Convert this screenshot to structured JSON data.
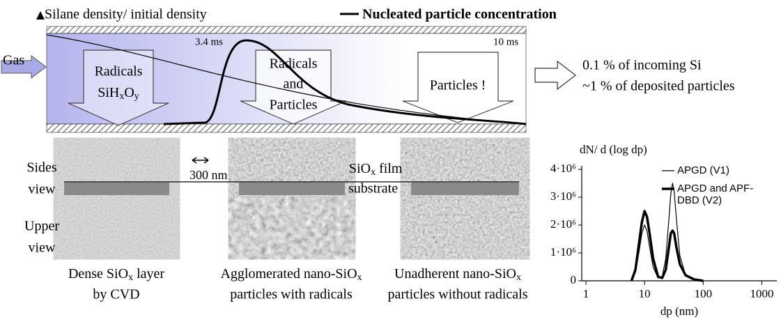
{
  "diagram": {
    "legend_silane": "Silane density/ initial density",
    "legend_nucleated": "Nucleated particle concentration",
    "time_1": "3.4 ms",
    "time_2": "10 ms",
    "gas": "Gas",
    "zones": [
      {
        "lines": [
          "Radicals"
        ],
        "formula": [
          "SiH",
          "x",
          "O",
          "y"
        ]
      },
      {
        "lines": [
          "Radicals",
          "and",
          "Particles"
        ]
      },
      {
        "lines": [
          "Particles !"
        ]
      }
    ],
    "outcome": [
      "0.1 % of incoming Si",
      "~1 % of deposited particles"
    ],
    "scale_bar": "300 nm",
    "film_label": [
      "SiO",
      "x",
      " film"
    ],
    "substrate_label": "substrate",
    "row_labels": [
      [
        "Sides",
        "view"
      ],
      [
        "Upper",
        "view"
      ]
    ],
    "captions": [
      {
        "line1": [
          "Dense SiO",
          "x",
          " layer"
        ],
        "line2": "by CVD"
      },
      {
        "line1": [
          "Agglomerated nano-SiO",
          "x"
        ],
        "line2": "particles with radicals"
      },
      {
        "line1": [
          "Unadherent nano-SiO",
          "x"
        ],
        "line2": "particles without radicals"
      }
    ]
  },
  "chart_data": {
    "type": "line",
    "y_label": "dN/ d (log dp)",
    "x_label": "dp (nm)",
    "x": [
      6,
      7,
      8,
      9,
      10,
      11,
      12,
      14,
      17,
      20,
      23,
      26,
      28,
      30,
      32,
      35,
      40,
      50,
      70,
      100
    ],
    "series": [
      {
        "name": "APGD  (V1)",
        "color": "#000000",
        "width": 1.2,
        "values": [
          0,
          300000,
          1000000,
          1700000,
          2000000,
          1800000,
          1300000,
          500000,
          100000,
          150000,
          800000,
          2200000,
          3100000,
          3500000,
          3200000,
          2200000,
          900000,
          200000,
          50000,
          0
        ]
      },
      {
        "name": "APGD and APF-DBD  (V2)",
        "color": "#000000",
        "width": 3.5,
        "values": [
          0,
          400000,
          1300000,
          2100000,
          2500000,
          2300000,
          1800000,
          800000,
          150000,
          100000,
          400000,
          1200000,
          1700000,
          1800000,
          1700000,
          1200000,
          600000,
          200000,
          50000,
          0
        ]
      }
    ],
    "xlim": [
      0.85,
      1800
    ],
    "x_log": true,
    "xticks": [
      1,
      10,
      100,
      1000
    ],
    "ylim": [
      0,
      4000000
    ],
    "yticks": [
      0,
      {
        "value": 1000000,
        "label": "1·10⁶"
      },
      {
        "value": 2000000,
        "label": "2·10⁶"
      },
      {
        "value": 3000000,
        "label": "3·10⁶"
      },
      {
        "value": 4000000,
        "label": "4·10⁶"
      }
    ]
  }
}
